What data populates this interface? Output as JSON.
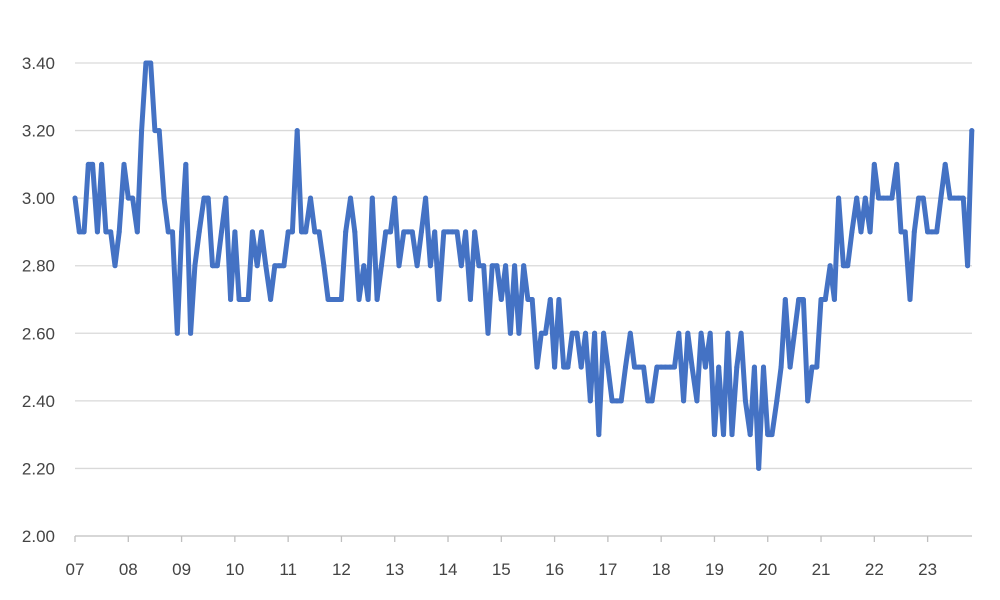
{
  "chart_data": {
    "type": "line",
    "title": "",
    "xlabel": "",
    "ylabel": "",
    "ylim": [
      2.0,
      3.4
    ],
    "y_ticks": [
      "2.00",
      "2.20",
      "2.40",
      "2.60",
      "2.80",
      "3.00",
      "3.20",
      "3.40"
    ],
    "x_ticks": [
      "07",
      "08",
      "09",
      "10",
      "11",
      "12",
      "13",
      "14",
      "15",
      "16",
      "17",
      "18",
      "19",
      "20",
      "21",
      "22",
      "23"
    ],
    "x_range": [
      2007.0,
      2023.833
    ],
    "grid": "horizontal",
    "legend": "none",
    "series": [
      {
        "color": "#4472C4",
        "x": [
          2007.0,
          2007.08,
          2007.17,
          2007.25,
          2007.33,
          2007.42,
          2007.5,
          2007.58,
          2007.67,
          2007.75,
          2007.83,
          2007.92,
          2008.0,
          2008.08,
          2008.17,
          2008.25,
          2008.33,
          2008.42,
          2008.5,
          2008.58,
          2008.67,
          2008.75,
          2008.83,
          2008.92,
          2009.0,
          2009.08,
          2009.17,
          2009.25,
          2009.33,
          2009.42,
          2009.5,
          2009.58,
          2009.67,
          2009.75,
          2009.83,
          2009.92,
          2010.0,
          2010.08,
          2010.17,
          2010.25,
          2010.33,
          2010.42,
          2010.5,
          2010.58,
          2010.67,
          2010.75,
          2010.83,
          2010.92,
          2011.0,
          2011.08,
          2011.17,
          2011.25,
          2011.33,
          2011.42,
          2011.5,
          2011.58,
          2011.67,
          2011.75,
          2011.83,
          2011.92,
          2012.0,
          2012.08,
          2012.17,
          2012.25,
          2012.33,
          2012.42,
          2012.5,
          2012.58,
          2012.67,
          2012.75,
          2012.83,
          2012.92,
          2013.0,
          2013.08,
          2013.17,
          2013.25,
          2013.33,
          2013.42,
          2013.5,
          2013.58,
          2013.67,
          2013.75,
          2013.83,
          2013.92,
          2014.0,
          2014.08,
          2014.17,
          2014.25,
          2014.33,
          2014.42,
          2014.5,
          2014.58,
          2014.67,
          2014.75,
          2014.83,
          2014.92,
          2015.0,
          2015.08,
          2015.17,
          2015.25,
          2015.33,
          2015.42,
          2015.5,
          2015.58,
          2015.67,
          2015.75,
          2015.83,
          2015.92,
          2016.0,
          2016.08,
          2016.17,
          2016.25,
          2016.33,
          2016.42,
          2016.5,
          2016.58,
          2016.67,
          2016.75,
          2016.83,
          2016.92,
          2017.0,
          2017.08,
          2017.17,
          2017.25,
          2017.33,
          2017.42,
          2017.5,
          2017.58,
          2017.67,
          2017.75,
          2017.83,
          2017.92,
          2018.0,
          2018.08,
          2018.17,
          2018.25,
          2018.33,
          2018.42,
          2018.5,
          2018.58,
          2018.67,
          2018.75,
          2018.83,
          2018.92,
          2019.0,
          2019.08,
          2019.17,
          2019.25,
          2019.33,
          2019.42,
          2019.5,
          2019.58,
          2019.67,
          2019.75,
          2019.83,
          2019.92,
          2020.0,
          2020.08,
          2020.17,
          2020.25,
          2020.33,
          2020.42,
          2020.5,
          2020.58,
          2020.67,
          2020.75,
          2020.83,
          2020.92,
          2021.0,
          2021.08,
          2021.17,
          2021.25,
          2021.33,
          2021.42,
          2021.5,
          2021.58,
          2021.67,
          2021.75,
          2021.83,
          2021.92,
          2022.0,
          2022.08,
          2022.17,
          2022.25,
          2022.33,
          2022.42,
          2022.5,
          2022.58,
          2022.67,
          2022.75,
          2022.83,
          2022.92,
          2023.0,
          2023.08,
          2023.17,
          2023.25,
          2023.33,
          2023.42,
          2023.5,
          2023.58,
          2023.67,
          2023.75,
          2023.83
        ],
        "values": [
          3.0,
          2.9,
          2.9,
          3.1,
          3.1,
          2.9,
          3.1,
          2.9,
          2.9,
          2.8,
          2.9,
          3.1,
          3.0,
          3.0,
          2.9,
          3.2,
          3.4,
          3.4,
          3.2,
          3.2,
          3.0,
          2.9,
          2.9,
          2.6,
          2.9,
          3.1,
          2.6,
          2.8,
          2.9,
          3.0,
          3.0,
          2.8,
          2.8,
          2.9,
          3.0,
          2.7,
          2.9,
          2.7,
          2.7,
          2.7,
          2.9,
          2.8,
          2.9,
          2.8,
          2.7,
          2.8,
          2.8,
          2.8,
          2.9,
          2.9,
          3.2,
          2.9,
          2.9,
          3.0,
          2.9,
          2.9,
          2.8,
          2.7,
          2.7,
          2.7,
          2.7,
          2.9,
          3.0,
          2.9,
          2.7,
          2.8,
          2.7,
          3.0,
          2.7,
          2.8,
          2.9,
          2.9,
          3.0,
          2.8,
          2.9,
          2.9,
          2.9,
          2.8,
          2.9,
          3.0,
          2.8,
          2.9,
          2.7,
          2.9,
          2.9,
          2.9,
          2.9,
          2.8,
          2.9,
          2.7,
          2.9,
          2.8,
          2.8,
          2.6,
          2.8,
          2.8,
          2.7,
          2.8,
          2.6,
          2.8,
          2.6,
          2.8,
          2.7,
          2.7,
          2.5,
          2.6,
          2.6,
          2.7,
          2.5,
          2.7,
          2.5,
          2.5,
          2.6,
          2.6,
          2.5,
          2.6,
          2.4,
          2.6,
          2.3,
          2.6,
          2.5,
          2.4,
          2.4,
          2.4,
          2.5,
          2.6,
          2.5,
          2.5,
          2.5,
          2.4,
          2.4,
          2.5,
          2.5,
          2.5,
          2.5,
          2.5,
          2.6,
          2.4,
          2.6,
          2.5,
          2.4,
          2.6,
          2.5,
          2.6,
          2.3,
          2.5,
          2.3,
          2.6,
          2.3,
          2.5,
          2.6,
          2.4,
          2.3,
          2.5,
          2.2,
          2.5,
          2.3,
          2.3,
          2.4,
          2.5,
          2.7,
          2.5,
          2.6,
          2.7,
          2.7,
          2.4,
          2.5,
          2.5,
          2.7,
          2.7,
          2.8,
          2.7,
          3.0,
          2.8,
          2.8,
          2.9,
          3.0,
          2.9,
          3.0,
          2.9,
          3.1,
          3.0,
          3.0,
          3.0,
          3.0,
          3.1,
          2.9,
          2.9,
          2.7,
          2.9,
          3.0,
          3.0,
          2.9,
          2.9,
          2.9,
          3.0,
          3.1,
          3.0,
          3.0,
          3.0,
          3.0,
          2.8,
          3.2
        ]
      }
    ]
  }
}
